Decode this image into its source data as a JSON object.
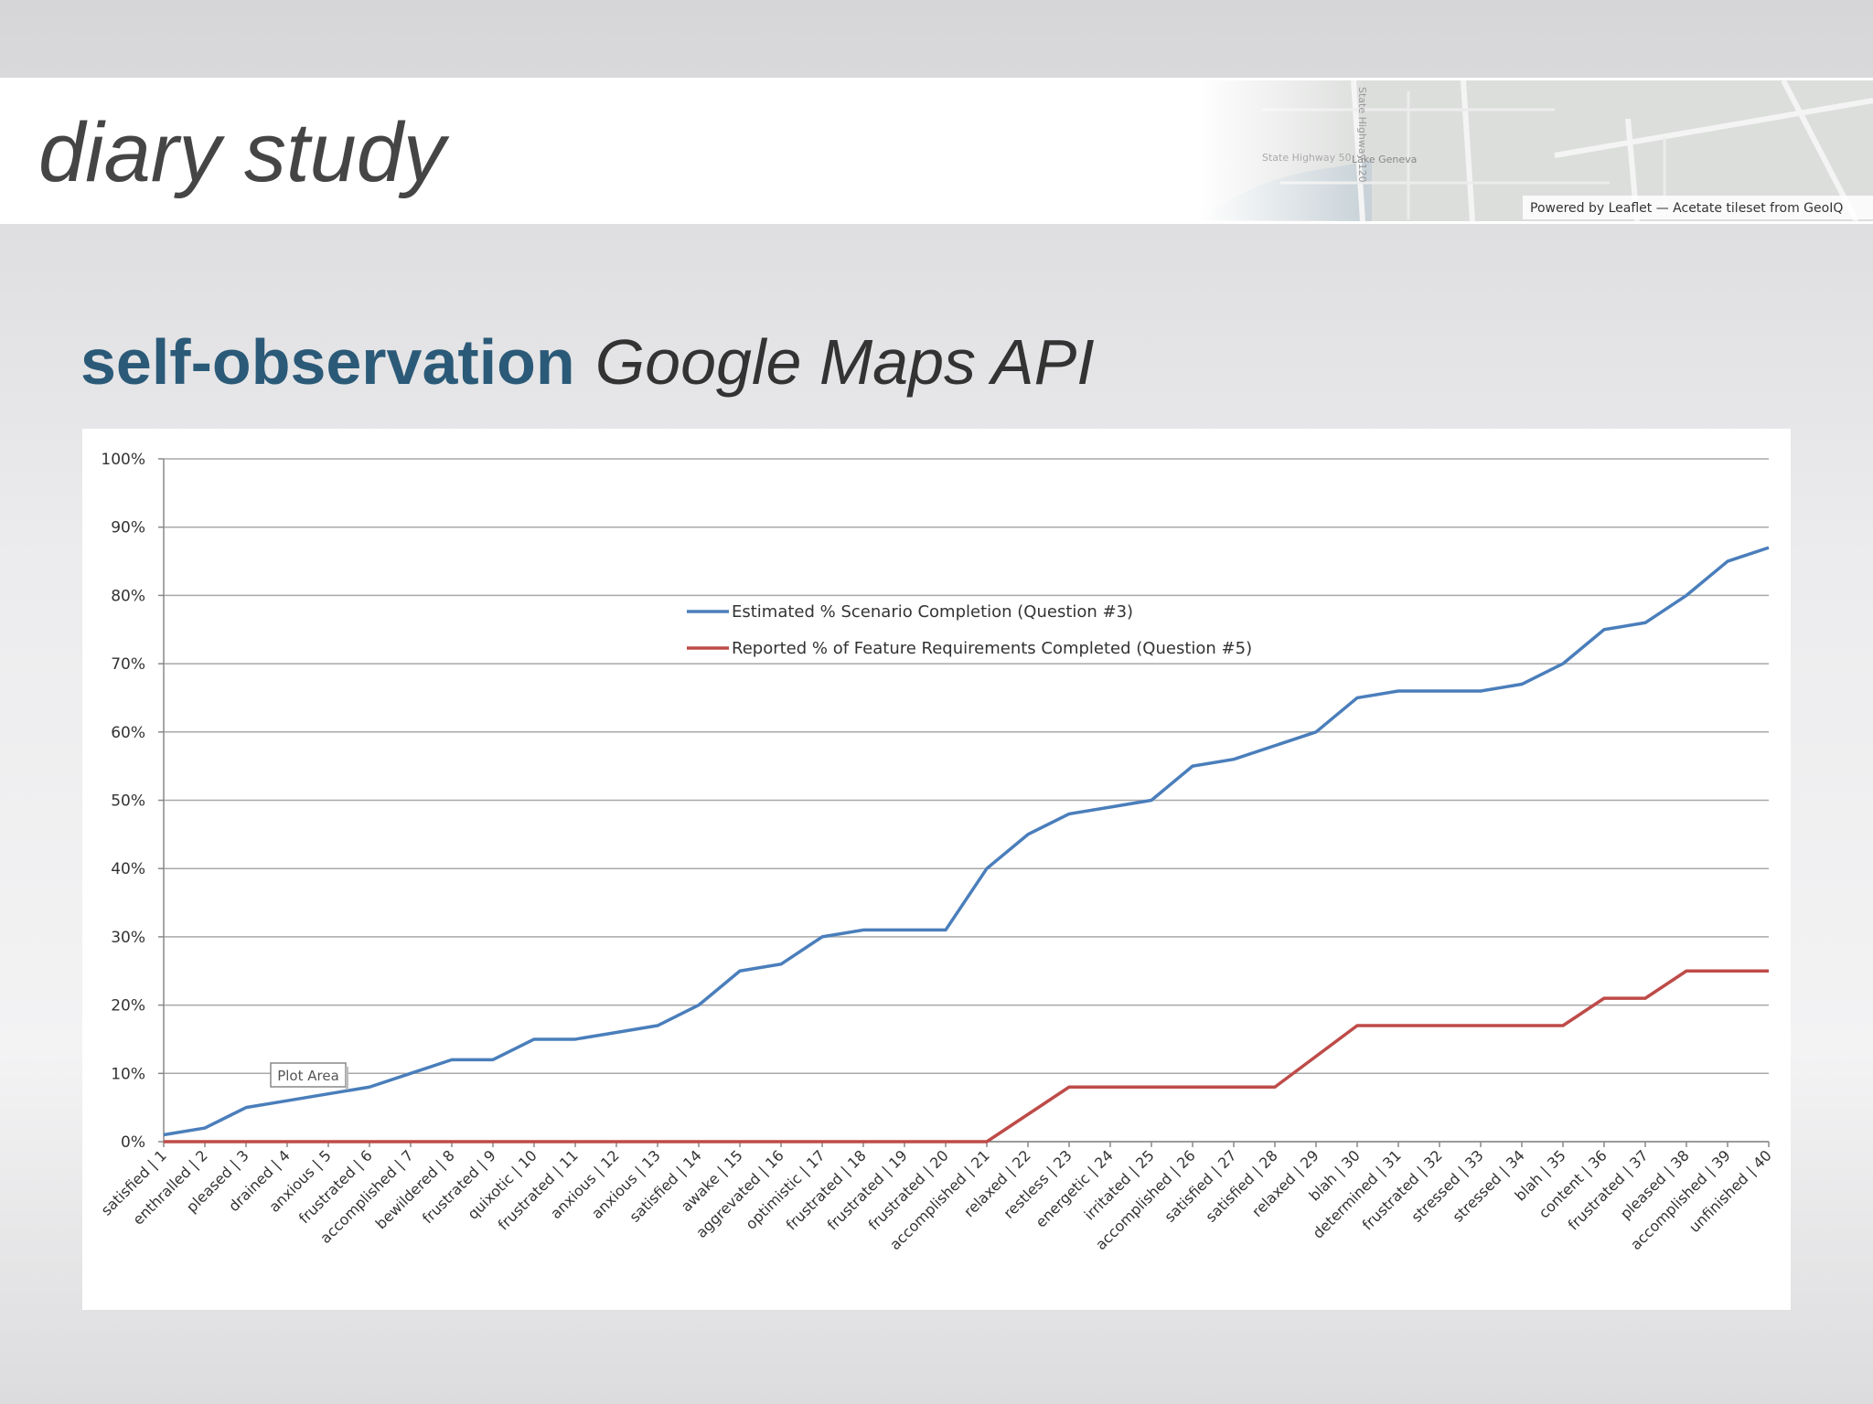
{
  "slide": {
    "title": "diary study",
    "heading_bold": "self-observation",
    "heading_italic": "Google Maps API",
    "map_labels": [
      "State Highway 50",
      "Lake Geneva",
      "State Highway 120"
    ],
    "map_credit": "Powered by Leaflet — Acetate tileset from GeoIQ"
  },
  "chart_data": {
    "type": "line",
    "categories": [
      "satisfied | 1",
      "enthralled | 2",
      "pleased | 3",
      "drained | 4",
      "anxious | 5",
      "frustrated | 6",
      "accomplished | 7",
      "bewildered | 8",
      "frustrated | 9",
      "quixotic | 10",
      "frustrated | 11",
      "anxious | 12",
      "anxious | 13",
      "satisfied | 14",
      "awake | 15",
      "aggrevated | 16",
      "optimistic | 17",
      "frustrated | 18",
      "frustrated | 19",
      "frustrated | 20",
      "accomplished | 21",
      "relaxed | 22",
      "restless | 23",
      "energetic | 24",
      "irritated | 25",
      "accomplished | 26",
      "satisfied | 27",
      "satisfied | 28",
      "relaxed | 29",
      "blah | 30",
      "determined | 31",
      "frustrated | 32",
      "stressed | 33",
      "stressed | 34",
      "blah | 35",
      "content | 36",
      "frustrated | 37",
      "pleased | 38",
      "accomplished | 39",
      "unfinished | 40"
    ],
    "series": [
      {
        "name": "Estimated % Scenario Completion (Question #3)",
        "color": "#4a7ebb",
        "values": [
          1,
          2,
          5,
          6,
          7,
          8,
          10,
          12,
          12,
          15,
          15,
          16,
          17,
          20,
          25,
          26,
          30,
          31,
          31,
          31,
          40,
          45,
          48,
          49,
          50,
          55,
          56,
          58,
          60,
          65,
          66,
          66,
          66,
          67,
          70,
          75,
          76,
          80,
          85,
          87
        ]
      },
      {
        "name": "Reported % of Feature Requirements Completed (Question #5)",
        "color": "#be4b48",
        "values": [
          0,
          0,
          0,
          0,
          0,
          0,
          0,
          0,
          0,
          0,
          0,
          0,
          0,
          0,
          0,
          0,
          0,
          0,
          0,
          0,
          0,
          4,
          8,
          8,
          8,
          8,
          8,
          8,
          12.5,
          17,
          17,
          17,
          17,
          17,
          17,
          21,
          21,
          25,
          25,
          25
        ]
      }
    ],
    "ylim": [
      0,
      100
    ],
    "yticks": [
      {
        "value": 0,
        "label": "0%"
      },
      {
        "value": 10,
        "label": "10%"
      },
      {
        "value": 20,
        "label": "20%"
      },
      {
        "value": 30,
        "label": "30%"
      },
      {
        "value": 40,
        "label": "40%"
      },
      {
        "value": 50,
        "label": "50%"
      },
      {
        "value": 60,
        "label": "60%"
      },
      {
        "value": 70,
        "label": "70%"
      },
      {
        "value": 80,
        "label": "80%"
      },
      {
        "value": 90,
        "label": "90%"
      },
      {
        "value": 100,
        "label": "100%"
      }
    ],
    "grid": true,
    "annotation": "Plot Area"
  }
}
